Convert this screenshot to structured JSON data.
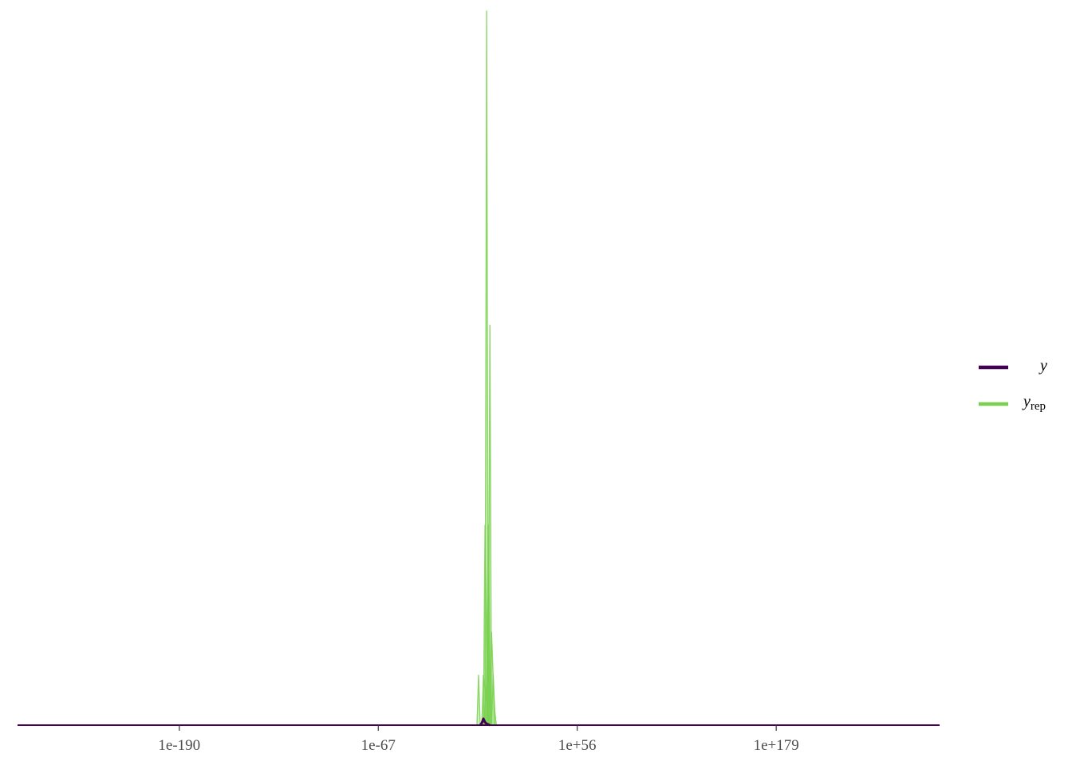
{
  "chart_data": {
    "type": "line",
    "title": "",
    "xlabel": "",
    "ylabel": "",
    "x_scale": "log10",
    "xlim": [
      1e-290,
      1e+280
    ],
    "x_ticks": [
      {
        "value": 1e-190,
        "label": "1e-190"
      },
      {
        "value": 1e-67,
        "label": "1e-67"
      },
      {
        "value": 1e+56,
        "label": "1e+56"
      },
      {
        "value": 1e+179,
        "label": "1e+179"
      }
    ],
    "y_axis_shown": false,
    "grid": false,
    "legend": {
      "position": "right",
      "items": [
        {
          "key": "y",
          "label": "y",
          "subscript": "",
          "color": "#440154"
        },
        {
          "key": "yrep",
          "label": "y",
          "subscript": "rep",
          "color": "#7ad151"
        }
      ]
    },
    "series": [
      {
        "key": "y",
        "color": "#440154",
        "x": [
          0.0001,
          0.001,
          0.01,
          0.1,
          1,
          10.0,
          100.0
        ],
        "y": [
          0,
          0.003,
          0.009,
          0.004,
          0.002,
          0.001,
          0
        ]
      },
      {
        "key": "yrep",
        "color": "#7ad151",
        "curves": [
          {
            "x": [
              0.001,
              0.01,
              1,
              100.0
            ],
            "y": [
              0,
              0.07,
              0.035,
              0
            ]
          },
          {
            "x": [
              0.01,
              0.1,
              1,
              10.0
            ],
            "y": [
              0,
              0.28,
              0.12,
              0
            ]
          },
          {
            "x": [
              0.01,
              1,
              10.0,
              100.0
            ],
            "y": [
              0,
              0.06,
              0.21,
              0
            ]
          },
          {
            "x": [
              0.1,
              1,
              10.0
            ],
            "y": [
              0,
              1.0,
              0
            ]
          },
          {
            "x": [
              1,
              10.0,
              100.0
            ],
            "y": [
              0,
              0.14,
              0
            ]
          },
          {
            "x": [
              10.0,
              100.0,
              1000.0
            ],
            "y": [
              0,
              0.56,
              0
            ]
          },
          {
            "x": [
              1,
              10.0,
              100.0,
              1000.0
            ],
            "y": [
              0,
              0.28,
              0.09,
              0
            ]
          },
          {
            "x": [
              100.0,
              1000.0,
              10000.0,
              100000.0
            ],
            "y": [
              0,
              0.13,
              0.07,
              0
            ]
          },
          {
            "x": [
              1000.0,
              10000.0,
              100000.0,
              1000000.0
            ],
            "y": [
              0,
              0.07,
              0.02,
              0
            ]
          },
          {
            "x": [
              1e-06,
              1e-05,
              0.0001
            ],
            "y": [
              0,
              0.07,
              0
            ]
          }
        ]
      }
    ]
  }
}
